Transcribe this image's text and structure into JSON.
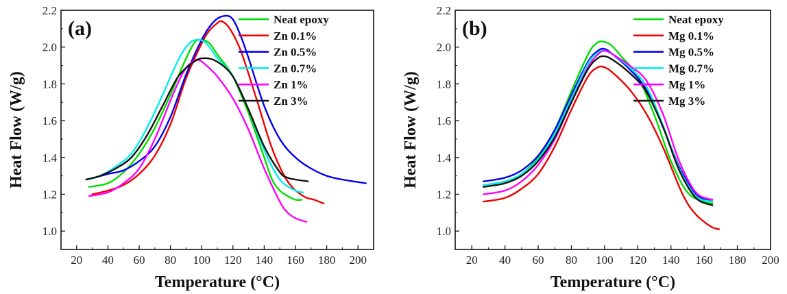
{
  "chart_data": [
    {
      "type": "line",
      "panel_label": "(a)",
      "xlabel": "Temperature (°C)",
      "ylabel": "Heat Flow (W/g)",
      "xlim": [
        10,
        210
      ],
      "ylim": [
        0.9,
        2.2
      ],
      "xticks": [
        20,
        40,
        60,
        80,
        100,
        120,
        140,
        160,
        180,
        200
      ],
      "yticks": [
        1.0,
        1.2,
        1.4,
        1.6,
        1.8,
        2.0,
        2.2
      ],
      "legend": "top-right",
      "series": [
        {
          "name": "Neat epoxy",
          "color": "#00dd00",
          "x": [
            28,
            40,
            50,
            60,
            70,
            80,
            88,
            95,
            100,
            105,
            110,
            120,
            130,
            140,
            145,
            150,
            155,
            160,
            164
          ],
          "y": [
            1.24,
            1.26,
            1.32,
            1.42,
            1.56,
            1.74,
            1.9,
            2.02,
            2.04,
            2.02,
            1.96,
            1.84,
            1.64,
            1.4,
            1.28,
            1.22,
            1.19,
            1.17,
            1.17
          ]
        },
        {
          "name": "Zn 0.1%",
          "color": "#ee0000",
          "x": [
            30,
            40,
            50,
            60,
            70,
            80,
            90,
            100,
            105,
            110,
            113,
            118,
            125,
            135,
            145,
            155,
            165,
            172,
            178
          ],
          "y": [
            1.2,
            1.22,
            1.25,
            1.31,
            1.41,
            1.58,
            1.83,
            2.02,
            2.09,
            2.13,
            2.14,
            2.1,
            1.98,
            1.72,
            1.45,
            1.27,
            1.19,
            1.17,
            1.15
          ]
        },
        {
          "name": "Zn 0.5%",
          "color": "#0000ee",
          "x": [
            27,
            40,
            50,
            60,
            70,
            80,
            90,
            100,
            108,
            115,
            120,
            125,
            130,
            140,
            150,
            160,
            170,
            180,
            190,
            205
          ],
          "y": [
            1.28,
            1.31,
            1.33,
            1.38,
            1.46,
            1.62,
            1.85,
            2.04,
            2.14,
            2.17,
            2.15,
            2.06,
            1.94,
            1.68,
            1.5,
            1.4,
            1.34,
            1.3,
            1.28,
            1.26
          ]
        },
        {
          "name": "Zn 0.7%",
          "color": "#00eeee",
          "x": [
            27,
            35,
            45,
            55,
            65,
            75,
            85,
            92,
            98,
            103,
            110,
            120,
            130,
            140,
            150,
            160,
            165
          ],
          "y": [
            1.28,
            1.3,
            1.35,
            1.42,
            1.56,
            1.74,
            1.93,
            2.02,
            2.04,
            2.02,
            1.94,
            1.84,
            1.66,
            1.44,
            1.28,
            1.22,
            1.21
          ]
        },
        {
          "name": "Zn 1%",
          "color": "#ff00ff",
          "x": [
            28,
            40,
            50,
            60,
            70,
            80,
            88,
            94,
            98,
            103,
            110,
            120,
            130,
            140,
            150,
            155,
            160,
            167
          ],
          "y": [
            1.19,
            1.21,
            1.26,
            1.34,
            1.5,
            1.71,
            1.86,
            1.92,
            1.93,
            1.9,
            1.84,
            1.72,
            1.55,
            1.34,
            1.16,
            1.1,
            1.07,
            1.05
          ]
        },
        {
          "name": "Zn 3%",
          "color": "#111111",
          "x": [
            26,
            35,
            45,
            55,
            65,
            75,
            85,
            95,
            102,
            110,
            120,
            130,
            140,
            150,
            155,
            160,
            168
          ],
          "y": [
            1.28,
            1.3,
            1.34,
            1.4,
            1.52,
            1.68,
            1.84,
            1.92,
            1.94,
            1.92,
            1.84,
            1.66,
            1.46,
            1.32,
            1.29,
            1.28,
            1.27
          ]
        }
      ]
    },
    {
      "type": "line",
      "panel_label": "(b)",
      "xlabel": "Temperature (°C)",
      "ylabel": "Heat Flow (W/g)",
      "xlim": [
        10,
        200
      ],
      "ylim": [
        0.9,
        2.2
      ],
      "xticks": [
        20,
        40,
        60,
        80,
        100,
        120,
        140,
        160,
        180,
        200
      ],
      "yticks": [
        1.0,
        1.2,
        1.4,
        1.6,
        1.8,
        2.0,
        2.2
      ],
      "legend": "top-right",
      "series": [
        {
          "name": "Neat epoxy",
          "color": "#00dd00",
          "x": [
            27,
            40,
            50,
            60,
            70,
            80,
            90,
            95,
            99,
            104,
            110,
            120,
            130,
            140,
            150,
            160,
            165
          ],
          "y": [
            1.24,
            1.26,
            1.31,
            1.4,
            1.55,
            1.76,
            1.96,
            2.02,
            2.03,
            2.01,
            1.95,
            1.84,
            1.63,
            1.38,
            1.21,
            1.16,
            1.15
          ]
        },
        {
          "name": "Mg 0.1%",
          "color": "#ee0000",
          "x": [
            27,
            40,
            50,
            60,
            70,
            80,
            90,
            96,
            100,
            105,
            115,
            125,
            135,
            145,
            150,
            155,
            160,
            165,
            169
          ],
          "y": [
            1.16,
            1.18,
            1.23,
            1.31,
            1.46,
            1.66,
            1.84,
            1.89,
            1.89,
            1.86,
            1.77,
            1.64,
            1.46,
            1.24,
            1.15,
            1.09,
            1.05,
            1.02,
            1.01
          ]
        },
        {
          "name": "Mg 0.5%",
          "color": "#0000ee",
          "x": [
            27,
            40,
            50,
            60,
            70,
            80,
            90,
            96,
            100,
            105,
            115,
            125,
            135,
            145,
            155,
            165
          ],
          "y": [
            1.27,
            1.29,
            1.33,
            1.41,
            1.55,
            1.74,
            1.92,
            1.98,
            1.99,
            1.96,
            1.88,
            1.77,
            1.57,
            1.35,
            1.2,
            1.16
          ]
        },
        {
          "name": "Mg 0.7%",
          "color": "#00eeee",
          "x": [
            27,
            40,
            50,
            60,
            70,
            80,
            90,
            96,
            100,
            105,
            115,
            125,
            135,
            145,
            155,
            165
          ],
          "y": [
            1.25,
            1.27,
            1.31,
            1.39,
            1.53,
            1.72,
            1.91,
            1.97,
            1.98,
            1.96,
            1.89,
            1.79,
            1.58,
            1.34,
            1.19,
            1.16
          ]
        },
        {
          "name": "Mg 1%",
          "color": "#ff00ff",
          "x": [
            27,
            40,
            50,
            60,
            70,
            80,
            90,
            96,
            100,
            105,
            115,
            125,
            135,
            145,
            155,
            165
          ],
          "y": [
            1.2,
            1.22,
            1.27,
            1.36,
            1.5,
            1.7,
            1.89,
            1.96,
            1.98,
            1.96,
            1.9,
            1.82,
            1.64,
            1.38,
            1.21,
            1.17
          ]
        },
        {
          "name": "Mg 3%",
          "color": "#111111",
          "x": [
            27,
            40,
            50,
            60,
            70,
            80,
            90,
            96,
            100,
            105,
            115,
            125,
            135,
            145,
            155,
            165
          ],
          "y": [
            1.24,
            1.26,
            1.3,
            1.38,
            1.51,
            1.7,
            1.88,
            1.94,
            1.95,
            1.93,
            1.86,
            1.76,
            1.57,
            1.33,
            1.18,
            1.14
          ]
        }
      ]
    }
  ]
}
